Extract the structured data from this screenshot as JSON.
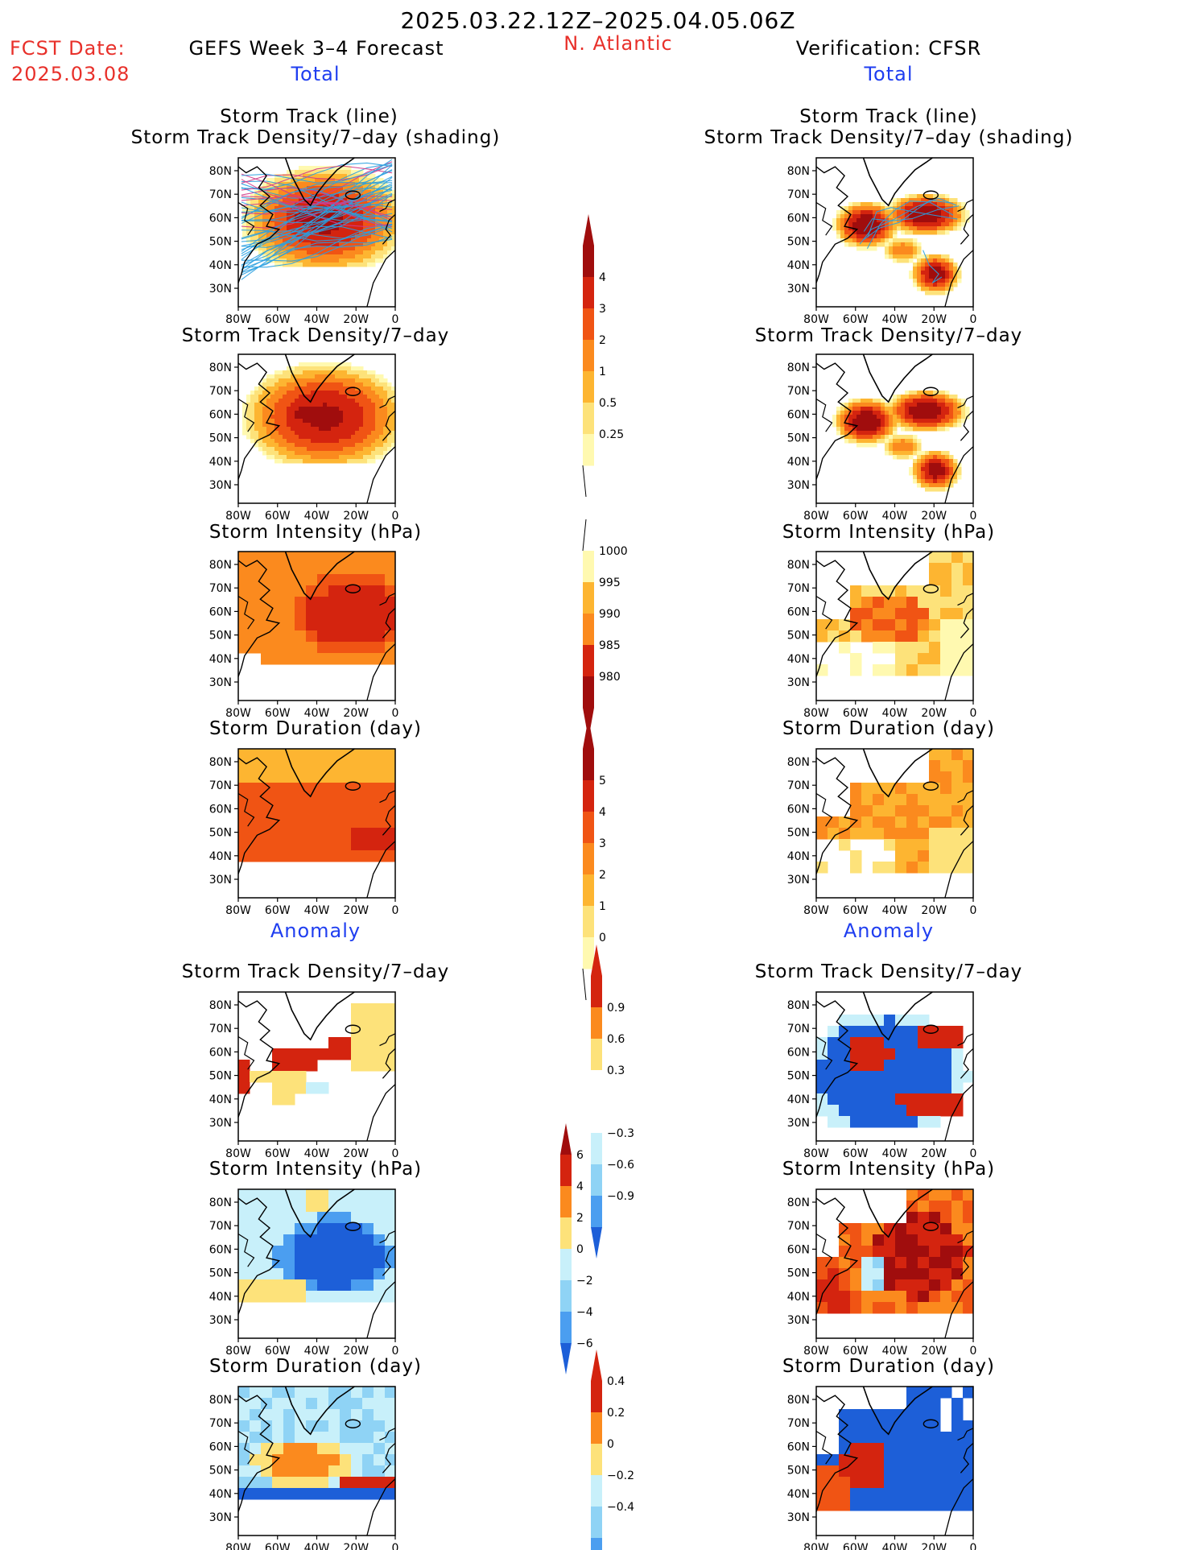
{
  "header": {
    "period": "2025.03.22.12Z–2025.04.05.06Z",
    "fcst_date_label": "FCST Date:",
    "fcst_date_value": "2025.03.08",
    "region": "N. Atlantic",
    "left_title": "GEFS Week 3–4 Forecast",
    "right_title": "Verification: CFSR",
    "left_subtitle": "Total",
    "right_subtitle": "Total",
    "left_anomaly": "Anomaly",
    "right_anomaly": "Anomaly"
  },
  "panel_titles": {
    "track_line": "Storm Track (line)",
    "track_shading": "Storm Track Density/7–day (shading)",
    "density": "Storm Track Density/7–day",
    "intensity": "Storm Intensity (hPa)",
    "duration": "Storm Duration (day)"
  },
  "axes": {
    "lat_labels": [
      "80N",
      "70N",
      "60N",
      "50N",
      "40N",
      "30N"
    ],
    "lon_labels": [
      "80W",
      "60W",
      "40W",
      "20W",
      "0"
    ]
  },
  "colorbars": [
    {
      "id": "density",
      "labels": [
        "4",
        "3",
        "2",
        "1",
        "0.5",
        "0.25"
      ]
    },
    {
      "id": "intensity",
      "labels": [
        "1000",
        "995",
        "990",
        "985",
        "980"
      ]
    },
    {
      "id": "duration",
      "labels": [
        "5",
        "4",
        "3",
        "2",
        "1",
        "0"
      ]
    },
    {
      "id": "density-anom",
      "labels": [
        "0.9",
        "0.6",
        "0.3",
        "−0.3",
        "−0.6",
        "−0.9"
      ]
    },
    {
      "id": "intensity-anom",
      "labels": [
        "6",
        "4",
        "2",
        "0",
        "−2",
        "−4",
        "−6"
      ]
    },
    {
      "id": "duration-anom",
      "labels": [
        "0.4",
        "0.2",
        "0",
        "−0.2",
        "−0.4"
      ]
    }
  ],
  "colors": {
    "title_red": "#e8302a",
    "title_blue": "#1f3ef0",
    "track_line": "#2aa0e0",
    "warm": [
      "#fff9b0",
      "#fde27a",
      "#fdb531",
      "#fb8a1e",
      "#f05414",
      "#d4240f",
      "#a00d0d"
    ],
    "cool": [
      "#c8f0fa",
      "#8fd3f5",
      "#4b9ef0",
      "#1d5fd8"
    ]
  }
}
